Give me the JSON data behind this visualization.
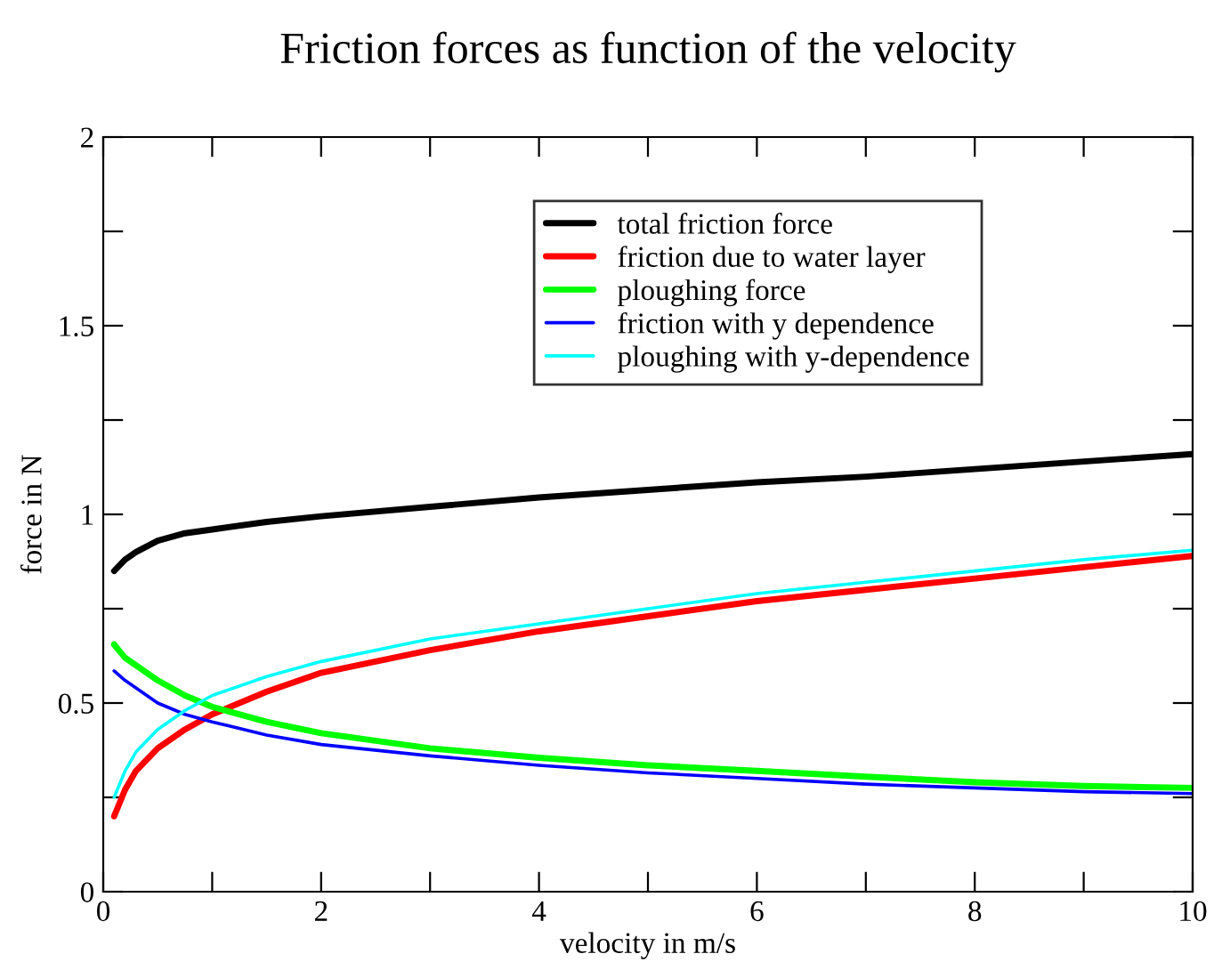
{
  "chart_data": {
    "type": "line",
    "title": "Friction forces as function of the velocity",
    "xlabel": "velocity in m/s",
    "ylabel": "force in N",
    "xlim": [
      0,
      10
    ],
    "ylim": [
      0,
      2
    ],
    "xticks": [
      0,
      {
        "value": 1,
        "label": null
      },
      2,
      {
        "value": 3,
        "label": null
      },
      4,
      {
        "value": 5,
        "label": null
      },
      6,
      {
        "value": 7,
        "label": null
      },
      8,
      {
        "value": 9,
        "label": null
      },
      10
    ],
    "yticks": [
      0,
      {
        "value": 0.25,
        "label": null
      },
      0.5,
      {
        "value": 0.75,
        "label": null
      },
      1,
      {
        "value": 1.25,
        "label": null
      },
      1.5,
      {
        "value": 1.75,
        "label": null
      },
      2
    ],
    "x": [
      0.1,
      0.2,
      0.3,
      0.5,
      0.75,
      1,
      1.5,
      2,
      3,
      4,
      5,
      6,
      7,
      8,
      9,
      10
    ],
    "series": [
      {
        "name": "total friction force",
        "color": "#000000",
        "values": [
          0.85,
          0.88,
          0.9,
          0.93,
          0.95,
          0.96,
          0.98,
          0.995,
          1.02,
          1.045,
          1.065,
          1.085,
          1.1,
          1.12,
          1.14,
          1.16
        ]
      },
      {
        "name": "friction due to water layer",
        "color": "#ff0000",
        "values": [
          0.2,
          0.27,
          0.32,
          0.38,
          0.43,
          0.47,
          0.53,
          0.58,
          0.64,
          0.69,
          0.73,
          0.77,
          0.8,
          0.83,
          0.86,
          0.89
        ]
      },
      {
        "name": "ploughing force",
        "color": "#00ff00",
        "values": [
          0.655,
          0.62,
          0.6,
          0.56,
          0.52,
          0.49,
          0.45,
          0.42,
          0.38,
          0.355,
          0.335,
          0.32,
          0.305,
          0.29,
          0.28,
          0.275
        ]
      },
      {
        "name": "friction with y dependence",
        "color": "#0000ff",
        "values": [
          0.585,
          0.56,
          0.54,
          0.5,
          0.47,
          0.45,
          0.415,
          0.39,
          0.36,
          0.335,
          0.315,
          0.3,
          0.285,
          0.275,
          0.265,
          0.26
        ]
      },
      {
        "name": "ploughing with y-dependence",
        "color": "#00ffff",
        "values": [
          0.25,
          0.32,
          0.37,
          0.43,
          0.48,
          0.52,
          0.57,
          0.61,
          0.67,
          0.71,
          0.75,
          0.79,
          0.82,
          0.85,
          0.88,
          0.905
        ]
      }
    ],
    "legend": "top right",
    "grid": false,
    "marker": "none",
    "line_style": "solid"
  }
}
